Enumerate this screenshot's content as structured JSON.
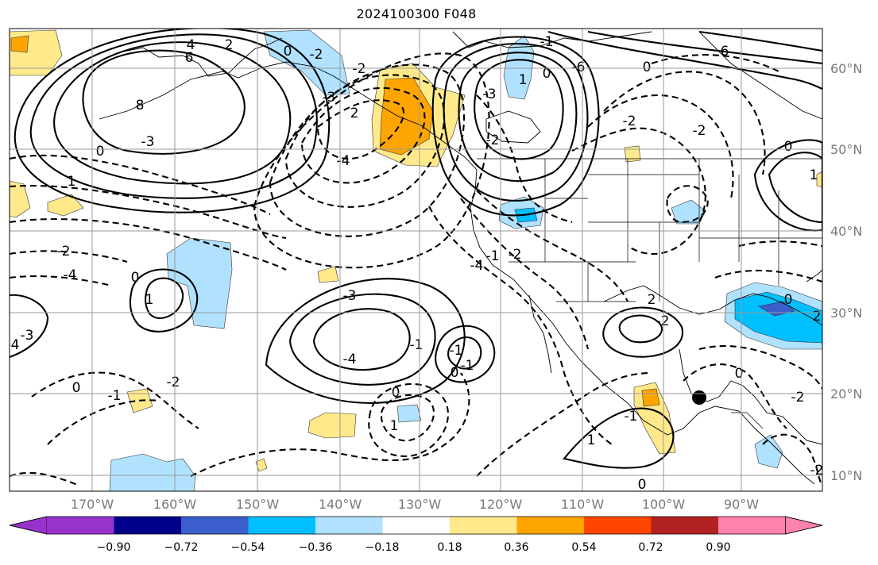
{
  "title": "2024100300 F048",
  "lat_labels": [
    "60°N",
    "50°N",
    "40°N",
    "30°N",
    "20°N",
    "10°N"
  ],
  "lon_labels": [
    "170°W",
    "160°W",
    "150°W",
    "140°W",
    "130°W",
    "120°W",
    "110°W",
    "100°W",
    "90°W"
  ],
  "colorbar": {
    "ticks": [
      "−0.90",
      "−0.72",
      "−0.54",
      "−0.36",
      "−0.18",
      "0.18",
      "0.36",
      "0.54",
      "0.72",
      "0.90"
    ],
    "colors": [
      "#9932cc",
      "#00008b",
      "#3a5fcd",
      "#00bfff",
      "#b0e2ff",
      "#ffffff",
      "#ffe98a",
      "#ffa500",
      "#ff4500",
      "#b22222",
      "#ff82ab"
    ]
  },
  "contour_labels": [
    "2",
    "0",
    "-2",
    "6",
    "8",
    "-3",
    "0",
    "1",
    "-2",
    "-4",
    "0",
    "1",
    "-2",
    "-3",
    "2",
    "-4",
    "-3",
    "-2",
    "1",
    "-6",
    "0",
    "-1",
    "-2",
    "-1",
    "0",
    "-2",
    "-2",
    "0",
    "1",
    "2",
    "-2",
    "-3",
    "-4",
    "-1",
    "-1",
    "0",
    "0",
    "1",
    "-1",
    "0",
    "-1",
    "-2",
    "1",
    "0",
    "-1",
    "0",
    "2",
    "0",
    "-2",
    "-2",
    "-3",
    "-4",
    "4",
    "-4",
    "6"
  ],
  "marker": "storm-center"
}
